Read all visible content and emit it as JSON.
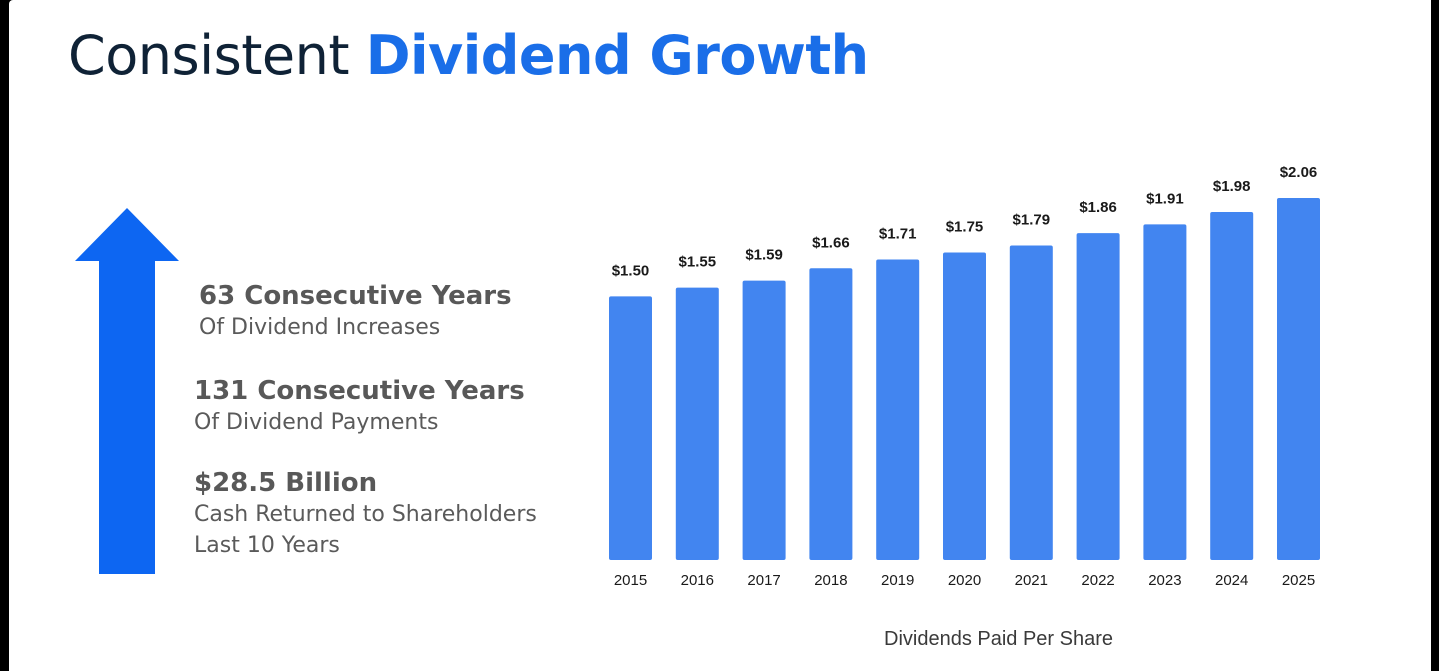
{
  "title": {
    "part1": "Consistent",
    "part2": "Dividend Growth"
  },
  "stats": [
    {
      "headline": "63 Consecutive Years",
      "lines": [
        "Of Dividend Increases"
      ]
    },
    {
      "headline": "131 Consecutive Years",
      "lines": [
        "Of Dividend Payments"
      ]
    },
    {
      "headline": "$28.5 Billion",
      "lines": [
        "Cash Returned to Shareholders",
        "Last 10 Years"
      ]
    }
  ],
  "icons": {
    "arrow": "up-arrow-icon"
  },
  "colors": {
    "title_dark": "#0f2236",
    "accent": "#1a6ee8",
    "arrow": "#0d66f2",
    "bar": "#4285f0"
  },
  "chart_data": {
    "type": "bar",
    "categories": [
      "2015",
      "2016",
      "2017",
      "2018",
      "2019",
      "2020",
      "2021",
      "2022",
      "2023",
      "2024",
      "2025"
    ],
    "values": [
      1.5,
      1.55,
      1.59,
      1.66,
      1.71,
      1.75,
      1.79,
      1.86,
      1.91,
      1.98,
      2.06
    ],
    "data_labels": [
      "$1.50",
      "$1.55",
      "$1.59",
      "$1.66",
      "$1.71",
      "$1.75",
      "$1.79",
      "$1.86",
      "$1.91",
      "$1.98",
      "$2.06"
    ],
    "xlabel": "Dividends Paid Per Share",
    "ylabel": "",
    "ylim": [
      0,
      2.06
    ],
    "grid": false,
    "legend": "none"
  }
}
